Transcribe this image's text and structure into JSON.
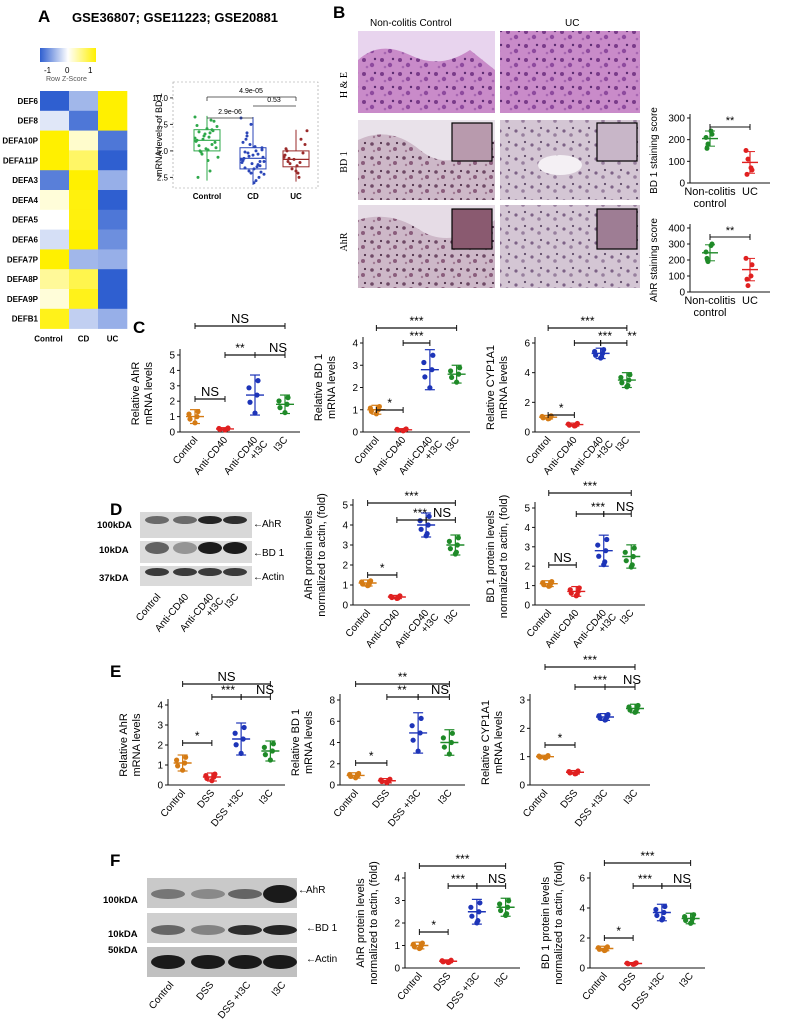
{
  "panelA": {
    "letter": "A",
    "title": "GSE36807; GSE11223; GSE20881",
    "heatmap": {
      "key_ticks": [
        "-1",
        "0",
        "1"
      ],
      "key_label": "Row Z-Score",
      "rows": [
        "DEF6",
        "DEF8",
        "DEFA10P",
        "DEFA11P",
        "DEFA3",
        "DEFA4",
        "DEFA5",
        "DEFA6",
        "DEFA7P",
        "DEFA8P",
        "DEFA9P",
        "DEFB1"
      ],
      "cols": [
        "Control",
        "CD",
        "UC"
      ],
      "z": [
        [
          -1.0,
          -0.45,
          1.0
        ],
        [
          -0.15,
          -0.85,
          1.0
        ],
        [
          1.0,
          0.2,
          -0.85
        ],
        [
          1.0,
          0.6,
          -1.0
        ],
        [
          -0.8,
          1.0,
          -0.5
        ],
        [
          0.15,
          0.95,
          -1.0
        ],
        [
          0.0,
          0.95,
          -0.85
        ],
        [
          -0.2,
          1.0,
          -0.7
        ],
        [
          1.0,
          -0.45,
          -0.5
        ],
        [
          0.4,
          0.7,
          -1.0
        ],
        [
          0.15,
          0.9,
          -1.0
        ],
        [
          0.9,
          -0.3,
          -0.5
        ]
      ],
      "colors": {
        "low": "#2f5fd0",
        "mid": "#ffffff",
        "high": "#fff000"
      }
    },
    "boxplot": {
      "ylabel": "mRNA levels of BD 1",
      "yticks": [
        "2.5",
        "5.0",
        "7.5",
        "10.0"
      ],
      "groups": [
        "Control",
        "CD",
        "UC"
      ],
      "pvals": [
        "4.9e-05",
        "2.9e-06",
        "0.53"
      ]
    }
  },
  "panelB": {
    "letter": "B",
    "col_labels": [
      "Non-colitis Control",
      "UC"
    ],
    "row_labels": [
      "H & E",
      "BD 1",
      "AhR"
    ],
    "score_charts": [
      {
        "ylabel": "BD 1 staining score",
        "yticks": [
          "0",
          "100",
          "200",
          "300"
        ],
        "groups": [
          "Non-colitis control",
          "UC"
        ],
        "sig": "**"
      },
      {
        "ylabel": "AhR staining score",
        "yticks": [
          "0",
          "100",
          "200",
          "300",
          "400"
        ],
        "groups": [
          "Non-colitis control",
          "UC"
        ],
        "sig": "**"
      }
    ]
  },
  "panelC": {
    "letter": "C",
    "groups": [
      "Control",
      "Anti-CD40",
      "Anti-CD40 +I3C",
      "I3C"
    ],
    "charts": [
      {
        "ylabel": "Relative AhR mRNA levels",
        "yticks": [
          "0",
          "1",
          "2",
          "3",
          "4",
          "5"
        ],
        "sig": [
          "NS",
          "**",
          "NS",
          "NS"
        ]
      },
      {
        "ylabel": "Relative BD 1 mRNA levels",
        "yticks": [
          "0",
          "1",
          "2",
          "3",
          "4"
        ],
        "sig": [
          "***",
          "***",
          "*"
        ]
      },
      {
        "ylabel": "Relative CYP1A1 mRNA levels",
        "yticks": [
          "0",
          "2",
          "4",
          "6"
        ],
        "sig": [
          "***",
          "***",
          "**",
          "*"
        ]
      }
    ]
  },
  "panelD": {
    "letter": "D",
    "blot_labels": [
      "AhR",
      "BD 1",
      "Actin"
    ],
    "kda_labels": [
      "100kDA",
      "10kDA",
      "37kDA"
    ],
    "groups": [
      "Control",
      "Anti-CD40",
      "Anti-CD40 +I3C",
      "I3C"
    ],
    "charts": [
      {
        "ylabel": "AhR protein levels normalized to actin, (fold)",
        "yticks": [
          "0",
          "1",
          "2",
          "3",
          "4",
          "5"
        ],
        "sig": [
          "***",
          "***",
          "NS",
          "*"
        ]
      },
      {
        "ylabel": "BD 1 protein levels normalized to actin, (fold)",
        "yticks": [
          "0",
          "1",
          "2",
          "3",
          "4",
          "5"
        ],
        "sig": [
          "***",
          "***",
          "NS",
          "NS"
        ]
      }
    ]
  },
  "panelE": {
    "letter": "E",
    "groups": [
      "Control",
      "DSS",
      "DSS +I3C",
      "I3C"
    ],
    "charts": [
      {
        "ylabel": "Relative AhR mRNA levels",
        "yticks": [
          "0",
          "1",
          "2",
          "3",
          "4"
        ],
        "sig": [
          "NS",
          "***",
          "NS",
          "*"
        ]
      },
      {
        "ylabel": "Relative BD 1 mRNA levels",
        "yticks": [
          "0",
          "2",
          "4",
          "6",
          "8"
        ],
        "sig": [
          "**",
          "**",
          "NS",
          "*"
        ]
      },
      {
        "ylabel": "Relative CYP1A1 mRNA levels",
        "yticks": [
          "0",
          "1",
          "2",
          "3"
        ],
        "sig": [
          "***",
          "***",
          "NS",
          "*"
        ]
      }
    ]
  },
  "panelF": {
    "letter": "F",
    "blot_labels": [
      "AhR",
      "BD 1",
      "Actin"
    ],
    "kda_labels": [
      "100kDA",
      "10kDA",
      "50kDA"
    ],
    "groups": [
      "Control",
      "DSS",
      "DSS +I3C",
      "I3C"
    ],
    "charts": [
      {
        "ylabel": "AhR protein levels normalized to actin, (fold)",
        "yticks": [
          "0",
          "1",
          "2",
          "3",
          "4"
        ],
        "sig": [
          "***",
          "***",
          "NS",
          "*"
        ]
      },
      {
        "ylabel": "BD 1 protein levels normalized to actin, (fold)",
        "yticks": [
          "0",
          "2",
          "4",
          "6"
        ],
        "sig": [
          "***",
          "***",
          "NS",
          "*"
        ]
      }
    ]
  },
  "chart_data": [
    {
      "type": "heatmap",
      "rows": [
        "DEF6",
        "DEF8",
        "DEFA10P",
        "DEFA11P",
        "DEFA3",
        "DEFA4",
        "DEFA5",
        "DEFA6",
        "DEFA7P",
        "DEFA8P",
        "DEFA9P",
        "DEFB1"
      ],
      "cols": [
        "Control",
        "CD",
        "UC"
      ]
    },
    {
      "type": "box",
      "ylabel": "mRNA levels of BD 1",
      "categories": [
        "Control",
        "CD",
        "UC"
      ],
      "medians": [
        6.0,
        4.3,
        4.2
      ],
      "ylim": [
        1.5,
        11.5
      ]
    },
    {
      "type": "scatter",
      "ylabel": "BD 1 staining score",
      "categories": [
        "Non-colitis control",
        "UC"
      ],
      "means": [
        205,
        95
      ],
      "ylim": [
        0,
        300
      ]
    },
    {
      "type": "scatter",
      "ylabel": "AhR staining score",
      "categories": [
        "Non-colitis control",
        "UC"
      ],
      "means": [
        245,
        140
      ],
      "ylim": [
        0,
        400
      ]
    },
    {
      "type": "scatter",
      "ylabel": "Relative AhR mRNA levels",
      "categories": [
        "Control",
        "Anti-CD40",
        "Anti-CD40 +I3C",
        "I3C"
      ],
      "means": [
        1.0,
        0.2,
        2.4,
        1.8
      ],
      "ylim": [
        0,
        5
      ]
    },
    {
      "type": "scatter",
      "ylabel": "Relative BD 1 mRNA levels",
      "categories": [
        "Control",
        "Anti-CD40",
        "Anti-CD40 +I3C",
        "I3C"
      ],
      "means": [
        1.0,
        0.1,
        2.8,
        2.6
      ],
      "ylim": [
        0,
        4
      ]
    },
    {
      "type": "scatter",
      "ylabel": "Relative CYP1A1 mRNA levels",
      "categories": [
        "Control",
        "Anti-CD40",
        "Anti-CD40 +I3C",
        "I3C"
      ],
      "means": [
        1.0,
        0.5,
        5.3,
        3.5
      ],
      "ylim": [
        0,
        6
      ]
    },
    {
      "type": "scatter",
      "ylabel": "AhR protein levels normalized to actin, (fold)",
      "categories": [
        "Control",
        "Anti-CD40",
        "Anti-CD40 +I3C",
        "I3C"
      ],
      "means": [
        1.1,
        0.4,
        4.0,
        3.0
      ],
      "ylim": [
        0,
        5
      ]
    },
    {
      "type": "scatter",
      "ylabel": "BD 1 protein levels normalized to actin, (fold)",
      "categories": [
        "Control",
        "Anti-CD40",
        "Anti-CD40 +I3C",
        "I3C"
      ],
      "means": [
        1.1,
        0.7,
        2.8,
        2.5
      ],
      "ylim": [
        0,
        5
      ]
    },
    {
      "type": "scatter",
      "ylabel": "Relative AhR mRNA levels",
      "categories": [
        "Control",
        "DSS",
        "DSS +I3C",
        "I3C"
      ],
      "means": [
        1.1,
        0.4,
        2.3,
        1.7
      ],
      "ylim": [
        0,
        4
      ]
    },
    {
      "type": "scatter",
      "ylabel": "Relative BD 1 mRNA levels",
      "categories": [
        "Control",
        "DSS",
        "DSS +I3C",
        "I3C"
      ],
      "means": [
        0.9,
        0.4,
        4.9,
        4.0
      ],
      "ylim": [
        0,
        8
      ]
    },
    {
      "type": "scatter",
      "ylabel": "Relative CYP1A1 mRNA levels",
      "categories": [
        "Control",
        "DSS",
        "DSS +I3C",
        "I3C"
      ],
      "means": [
        1.0,
        0.45,
        2.4,
        2.7
      ],
      "ylim": [
        0,
        3
      ]
    },
    {
      "type": "scatter",
      "ylabel": "AhR protein levels normalized to actin, (fold)",
      "categories": [
        "Control",
        "DSS",
        "DSS +I3C",
        "I3C"
      ],
      "means": [
        1.0,
        0.3,
        2.5,
        2.7
      ],
      "ylim": [
        0,
        4
      ]
    },
    {
      "type": "scatter",
      "ylabel": "BD 1 protein levels normalized to actin, (fold)",
      "categories": [
        "Control",
        "DSS",
        "DSS +I3C",
        "I3C"
      ],
      "means": [
        1.3,
        0.3,
        3.7,
        3.3
      ],
      "ylim": [
        0,
        6
      ]
    }
  ]
}
